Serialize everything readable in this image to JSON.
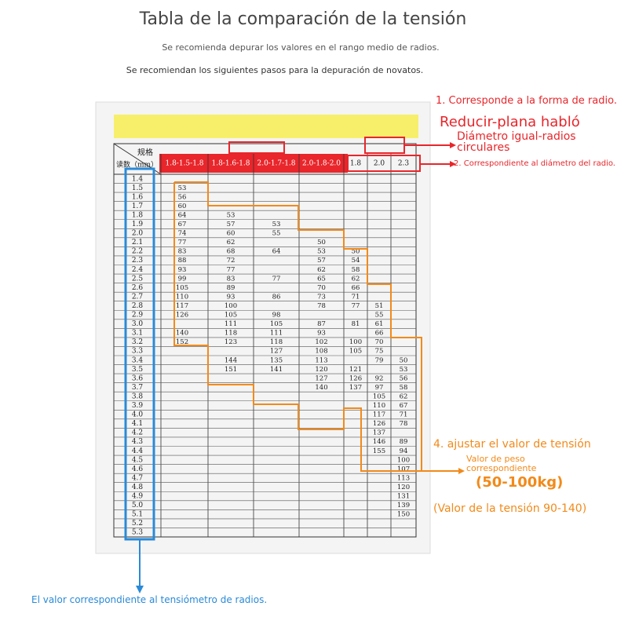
{
  "header": {
    "title": "Tabla de la comparación de la tensión",
    "subtitle": "Se recomienda depurar los valores en el rango medio de radios.",
    "steps_note": "Se recomiendan los siguientes pasos para la depuración de novatos."
  },
  "annotations": {
    "step1": "1. Corresponde a la forma de radio.",
    "flat": "Reducir-plana habló",
    "round": "Diámetro igual-radios circulares",
    "step2": "2. Correspondiente al diámetro del radio.",
    "step4": "4. ajustar el valor de tensión",
    "weight": "Valor de peso correspondiente",
    "weight_range": "(50-100kg)",
    "tension_range": "(Valor de la tensión 90-140)",
    "reading_note": "El valor correspondiente al tensiómetro de radios."
  },
  "table": {
    "spec_label": "规格",
    "reading_label": "读数（mm）",
    "columns": [
      "1.8-1.5-1.8",
      "1.8-1.6-1.8",
      "2.0-1.7-1.8",
      "2.0-1.8-2.0",
      "1.8",
      "2.0",
      "2.3"
    ],
    "readings": [
      "1.4",
      "1.5",
      "1.6",
      "1.7",
      "1.8",
      "1.9",
      "2.0",
      "2.1",
      "2.2",
      "2.3",
      "2.4",
      "2.5",
      "2.6",
      "2.7",
      "2.8",
      "2.9",
      "3.0",
      "3.1",
      "3.2",
      "3.3",
      "3.4",
      "3.5",
      "3.6",
      "3.7",
      "3.8",
      "3.9",
      "4.0",
      "4.1",
      "4.2",
      "4.3",
      "4.4",
      "4.5",
      "4.6",
      "4.7",
      "4.8",
      "4.9",
      "5.0",
      "5.1",
      "5.2",
      "5.3"
    ],
    "cells": [
      [
        null,
        null,
        null,
        null,
        null,
        null,
        null
      ],
      [
        53,
        null,
        null,
        null,
        null,
        null,
        null
      ],
      [
        56,
        null,
        null,
        null,
        null,
        null,
        null
      ],
      [
        60,
        null,
        null,
        null,
        null,
        null,
        null
      ],
      [
        64,
        53,
        null,
        null,
        null,
        null,
        null
      ],
      [
        67,
        57,
        53,
        null,
        null,
        null,
        null
      ],
      [
        74,
        60,
        55,
        null,
        null,
        null,
        null
      ],
      [
        77,
        62,
        null,
        50,
        null,
        null,
        null
      ],
      [
        83,
        68,
        64,
        53,
        50,
        null,
        null
      ],
      [
        88,
        72,
        null,
        57,
        54,
        null,
        null
      ],
      [
        93,
        77,
        null,
        62,
        58,
        null,
        null
      ],
      [
        99,
        83,
        77,
        65,
        62,
        null,
        null
      ],
      [
        105,
        89,
        null,
        70,
        66,
        null,
        null
      ],
      [
        110,
        93,
        86,
        73,
        71,
        null,
        null
      ],
      [
        117,
        100,
        null,
        78,
        77,
        51,
        null
      ],
      [
        126,
        105,
        98,
        null,
        null,
        55,
        null
      ],
      [
        null,
        111,
        105,
        87,
        81,
        61,
        null
      ],
      [
        140,
        118,
        111,
        93,
        null,
        66,
        null
      ],
      [
        152,
        123,
        118,
        102,
        100,
        70,
        null
      ],
      [
        null,
        null,
        127,
        108,
        105,
        75,
        null
      ],
      [
        null,
        144,
        135,
        113,
        null,
        79,
        50
      ],
      [
        null,
        151,
        141,
        120,
        121,
        null,
        53
      ],
      [
        null,
        null,
        null,
        127,
        126,
        92,
        56
      ],
      [
        null,
        null,
        null,
        140,
        137,
        97,
        58
      ],
      [
        null,
        null,
        null,
        null,
        null,
        105,
        62
      ],
      [
        null,
        null,
        null,
        null,
        null,
        110,
        67
      ],
      [
        null,
        null,
        null,
        null,
        null,
        117,
        71
      ],
      [
        null,
        null,
        null,
        null,
        null,
        126,
        78
      ],
      [
        null,
        null,
        null,
        null,
        null,
        137,
        null
      ],
      [
        null,
        null,
        null,
        null,
        null,
        146,
        89
      ],
      [
        null,
        null,
        null,
        null,
        null,
        155,
        94
      ],
      [
        null,
        null,
        null,
        null,
        null,
        null,
        100
      ],
      [
        null,
        null,
        null,
        null,
        null,
        null,
        107
      ],
      [
        null,
        null,
        null,
        null,
        null,
        null,
        113
      ],
      [
        null,
        null,
        null,
        null,
        null,
        null,
        120
      ],
      [
        null,
        null,
        null,
        null,
        null,
        null,
        131
      ],
      [
        null,
        null,
        null,
        null,
        null,
        null,
        139
      ],
      [
        null,
        null,
        null,
        null,
        null,
        null,
        150
      ],
      [
        null,
        null,
        null,
        null,
        null,
        null,
        null
      ],
      [
        null,
        null,
        null,
        null,
        null,
        null,
        null
      ]
    ]
  }
}
